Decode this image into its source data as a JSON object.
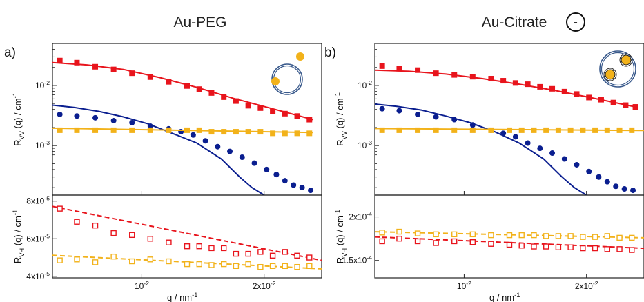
{
  "titles": {
    "left": "Au-PEG",
    "right": "Au-Citrate"
  },
  "charge_symbol": "-",
  "panel_labels": {
    "a": "a)",
    "b": "b)"
  },
  "colors": {
    "red": "#e8141c",
    "blue": "#0a1e8f",
    "gold": "#f2b21a",
    "frame": "#222222"
  },
  "chart_data": [
    {
      "id": "a-top",
      "type": "scatter",
      "ylog": true,
      "ylabel": "R_VV (q) / cm^-1",
      "xlim": [
        0.0032,
        0.0252
      ],
      "ylim": [
        0.00015,
        0.05
      ],
      "yticks": [
        {
          "v": 0.01,
          "label": "10^-2"
        },
        {
          "v": 0.001,
          "label": "10^-3"
        }
      ],
      "xticks": [
        {
          "v": 0.0105
        },
        {
          "v": 0.0205
        }
      ],
      "series": [
        {
          "color": "red",
          "marker": "square",
          "x": [
            0.0038,
            0.0052,
            0.0067,
            0.0082,
            0.0097,
            0.0112,
            0.0127,
            0.0142,
            0.0152,
            0.0162,
            0.0172,
            0.0182,
            0.0192,
            0.0202,
            0.0212,
            0.0222,
            0.0232,
            0.0242
          ],
          "y": [
            0.026,
            0.024,
            0.0205,
            0.0185,
            0.016,
            0.0138,
            0.0115,
            0.0098,
            0.0087,
            0.0075,
            0.0064,
            0.0055,
            0.0046,
            0.0042,
            0.0037,
            0.0034,
            0.0031,
            0.0027
          ],
          "fit_x": [
            0.0032,
            0.006,
            0.009,
            0.012,
            0.015,
            0.018,
            0.021,
            0.0245
          ],
          "fit_y": [
            0.024,
            0.022,
            0.0185,
            0.0135,
            0.0093,
            0.0061,
            0.0042,
            0.0027
          ]
        },
        {
          "color": "blue",
          "marker": "circle",
          "x": [
            0.0038,
            0.0052,
            0.0067,
            0.0082,
            0.0097,
            0.0112,
            0.0127,
            0.0137,
            0.0147,
            0.0157,
            0.0167,
            0.0177,
            0.0187,
            0.0197,
            0.0207,
            0.0215,
            0.0222,
            0.0229,
            0.0236,
            0.0243
          ],
          "y": [
            0.0033,
            0.0031,
            0.0029,
            0.0026,
            0.0024,
            0.0021,
            0.0019,
            0.0017,
            0.0015,
            0.0012,
            0.00096,
            0.0008,
            0.00064,
            0.00051,
            0.0004,
            0.00033,
            0.00026,
            0.00022,
            0.0002,
            0.00018
          ],
          "fit_x": [
            0.0032,
            0.005,
            0.007,
            0.009,
            0.011,
            0.013,
            0.015,
            0.017,
            0.0185,
            0.0195,
            0.0205
          ],
          "fit_y": [
            0.0047,
            0.0043,
            0.0037,
            0.003,
            0.0023,
            0.0016,
            0.0011,
            0.0006,
            0.0003,
            0.0002,
            0.00015
          ]
        },
        {
          "color": "gold",
          "marker": "square",
          "x": [
            0.0038,
            0.0052,
            0.0067,
            0.0082,
            0.0097,
            0.0112,
            0.0127,
            0.0142,
            0.0152,
            0.0162,
            0.0172,
            0.0182,
            0.0192,
            0.0202,
            0.0212,
            0.0222,
            0.0232,
            0.0242
          ],
          "y": [
            0.0018,
            0.0018,
            0.0018,
            0.0018,
            0.0018,
            0.0018,
            0.0018,
            0.0018,
            0.0018,
            0.0017,
            0.0017,
            0.0017,
            0.0017,
            0.0017,
            0.0016,
            0.0016,
            0.0016,
            0.0016
          ],
          "fit_x": [
            0.0032,
            0.0245
          ],
          "fit_y": [
            0.00195,
            0.00165
          ]
        }
      ]
    },
    {
      "id": "a-bottom",
      "type": "scatter",
      "ylog": false,
      "ylabel": "R_VH (q) / cm^-1",
      "xlim": [
        0.0032,
        0.0252
      ],
      "ylim": [
        3.92e-05,
        8.32e-05
      ],
      "yticks": [
        {
          "v": 8e-05,
          "label": "8x10^-5"
        },
        {
          "v": 6e-05,
          "label": "6x10^-5"
        },
        {
          "v": 4e-05,
          "label": "4x10^-5"
        }
      ],
      "xticks": [
        {
          "v": 0.0105,
          "label": "10^-2"
        },
        {
          "v": 0.0205,
          "label": "2x10^-2"
        }
      ],
      "xlabel": "q / nm^-1",
      "series": [
        {
          "color": "red",
          "marker": "open-square",
          "x": [
            0.0038,
            0.0052,
            0.0067,
            0.0082,
            0.0097,
            0.0112,
            0.0127,
            0.0142,
            0.0152,
            0.0162,
            0.0172,
            0.0182,
            0.0192,
            0.0202,
            0.0212,
            0.0222,
            0.0232,
            0.0242
          ],
          "y": [
            7.6e-05,
            6.9e-05,
            6.7e-05,
            6.3e-05,
            6.2e-05,
            6e-05,
            5.8e-05,
            5.6e-05,
            5.6e-05,
            5.5e-05,
            5.5e-05,
            5.2e-05,
            5.2e-05,
            5.3e-05,
            5.1e-05,
            5.3e-05,
            5.1e-05,
            5e-05
          ],
          "fit_x": [
            0.0032,
            0.0252
          ],
          "fit_y": [
            7.72e-05,
            4.85e-05
          ],
          "dashed": true
        },
        {
          "color": "gold",
          "marker": "open-square",
          "x": [
            0.0038,
            0.0052,
            0.0067,
            0.0082,
            0.0097,
            0.0112,
            0.0127,
            0.0142,
            0.0152,
            0.0162,
            0.0172,
            0.0182,
            0.0192,
            0.0202,
            0.0212,
            0.0222,
            0.0232,
            0.0242
          ],
          "y": [
            4.85e-05,
            4.9e-05,
            4.75e-05,
            5.05e-05,
            4.8e-05,
            4.9e-05,
            4.8e-05,
            4.65e-05,
            4.65e-05,
            4.6e-05,
            4.65e-05,
            4.55e-05,
            4.65e-05,
            4.5e-05,
            4.55e-05,
            4.55e-05,
            4.5e-05,
            4.55e-05
          ],
          "fit_x": [
            0.0032,
            0.0252
          ],
          "fit_y": [
            5.12e-05,
            4.4e-05
          ],
          "dashed": true
        }
      ]
    },
    {
      "id": "b-top",
      "type": "scatter",
      "ylog": true,
      "ylabel": "R_VV (q) / cm^-1",
      "xlim": [
        0.0032,
        0.0252
      ],
      "ylim": [
        0.00015,
        0.05
      ],
      "yticks": [
        {
          "v": 0.01,
          "label": "10^-2"
        },
        {
          "v": 0.001,
          "label": "10^-3"
        }
      ],
      "xticks": [
        {
          "v": 0.0105
        },
        {
          "v": 0.0205
        }
      ],
      "series": [
        {
          "color": "red",
          "marker": "square",
          "x": [
            0.0038,
            0.0052,
            0.0067,
            0.0082,
            0.0097,
            0.0112,
            0.0127,
            0.0137,
            0.0147,
            0.0157,
            0.0167,
            0.0177,
            0.0187,
            0.0197,
            0.0207,
            0.0217,
            0.0227,
            0.0237,
            0.0245
          ],
          "y": [
            0.021,
            0.019,
            0.018,
            0.016,
            0.015,
            0.014,
            0.013,
            0.012,
            0.011,
            0.0105,
            0.0095,
            0.0088,
            0.0079,
            0.0072,
            0.0063,
            0.0058,
            0.0052,
            0.0047,
            0.0044
          ],
          "fit_x": [
            0.0032,
            0.006,
            0.009,
            0.012,
            0.015,
            0.018,
            0.021,
            0.0245
          ],
          "fit_y": [
            0.018,
            0.0172,
            0.0155,
            0.013,
            0.0105,
            0.0082,
            0.0062,
            0.0044
          ]
        },
        {
          "color": "blue",
          "marker": "circle",
          "x": [
            0.0038,
            0.0052,
            0.0067,
            0.0082,
            0.0097,
            0.0112,
            0.0127,
            0.0137,
            0.0147,
            0.0157,
            0.0167,
            0.0177,
            0.0187,
            0.0197,
            0.0207,
            0.0215,
            0.0222,
            0.0229,
            0.0236,
            0.0243
          ],
          "y": [
            0.0041,
            0.0038,
            0.0033,
            0.003,
            0.0027,
            0.0022,
            0.0018,
            0.0016,
            0.0014,
            0.0011,
            0.0009,
            0.00075,
            0.0006,
            0.00048,
            0.00037,
            0.0003,
            0.00025,
            0.00021,
            0.00019,
            0.00018
          ],
          "fit_x": [
            0.0032,
            0.005,
            0.007,
            0.009,
            0.011,
            0.013,
            0.015,
            0.017,
            0.0185,
            0.0195,
            0.0205
          ],
          "fit_y": [
            0.0049,
            0.0045,
            0.0039,
            0.0031,
            0.0024,
            0.0017,
            0.0011,
            0.0006,
            0.0003,
            0.0002,
            0.00015
          ]
        },
        {
          "color": "gold",
          "marker": "square",
          "x": [
            0.0038,
            0.0052,
            0.0067,
            0.0082,
            0.0097,
            0.0112,
            0.0127,
            0.0142,
            0.0152,
            0.0162,
            0.0172,
            0.0182,
            0.0192,
            0.0202,
            0.0212,
            0.0222,
            0.0232,
            0.0242
          ],
          "y": [
            0.0018,
            0.0018,
            0.0018,
            0.0018,
            0.0018,
            0.0018,
            0.0018,
            0.0018,
            0.0018,
            0.0018,
            0.0018,
            0.0018,
            0.0018,
            0.0018,
            0.0018,
            0.0018,
            0.0018,
            0.0018
          ],
          "fit_x": [
            0.0032,
            0.0252
          ],
          "fit_y": [
            0.00192,
            0.00178
          ]
        }
      ]
    },
    {
      "id": "b-bottom",
      "type": "scatter",
      "ylog": false,
      "ylabel": "R_VH (q) / cm^-1",
      "xlim": [
        0.0032,
        0.0252
      ],
      "ylim": [
        0.00013,
        0.000225
      ],
      "yticks": [
        {
          "v": 0.0002,
          "label": "2x10^-4"
        },
        {
          "v": 0.00015,
          "label": "1.5x10^-4"
        }
      ],
      "xticks": [
        {
          "v": 0.0105,
          "label": "10^-2"
        },
        {
          "v": 0.0205,
          "label": "2x10^-2"
        }
      ],
      "xlabel": "q / nm^-1",
      "series": [
        {
          "color": "gold",
          "marker": "open-square",
          "x": [
            0.0038,
            0.0052,
            0.0067,
            0.0082,
            0.0097,
            0.0112,
            0.0127,
            0.0142,
            0.0152,
            0.0162,
            0.0172,
            0.0182,
            0.0192,
            0.0202,
            0.0212,
            0.0222,
            0.0232,
            0.0242
          ],
          "y": [
            0.000182,
            0.000183,
            0.000181,
            0.00018,
            0.00018,
            0.00018,
            0.000179,
            0.000179,
            0.000179,
            0.000179,
            0.000178,
            0.000178,
            0.000178,
            0.000177,
            0.000177,
            0.000178,
            0.000176,
            0.000176
          ],
          "fit_x": [
            0.0032,
            0.0252
          ],
          "fit_y": [
            0.000183,
            0.000176
          ],
          "dashed": true
        },
        {
          "color": "red",
          "marker": "open-square",
          "x": [
            0.0038,
            0.0052,
            0.0067,
            0.0082,
            0.0097,
            0.0112,
            0.0127,
            0.0142,
            0.0152,
            0.0162,
            0.0172,
            0.0182,
            0.0192,
            0.0202,
            0.0212,
            0.0222,
            0.0232,
            0.0242
          ],
          "y": [
            0.000172,
            0.000175,
            0.000172,
            0.00017,
            0.000172,
            0.000171,
            0.000169,
            0.000168,
            0.000167,
            0.000166,
            0.000166,
            0.000165,
            0.000165,
            0.000164,
            0.000164,
            0.000163,
            0.000163,
            0.000162
          ],
          "fit_x": [
            0.0032,
            0.0252
          ],
          "fit_y": [
            0.000177,
            0.000164
          ],
          "dashed": true
        }
      ]
    }
  ]
}
